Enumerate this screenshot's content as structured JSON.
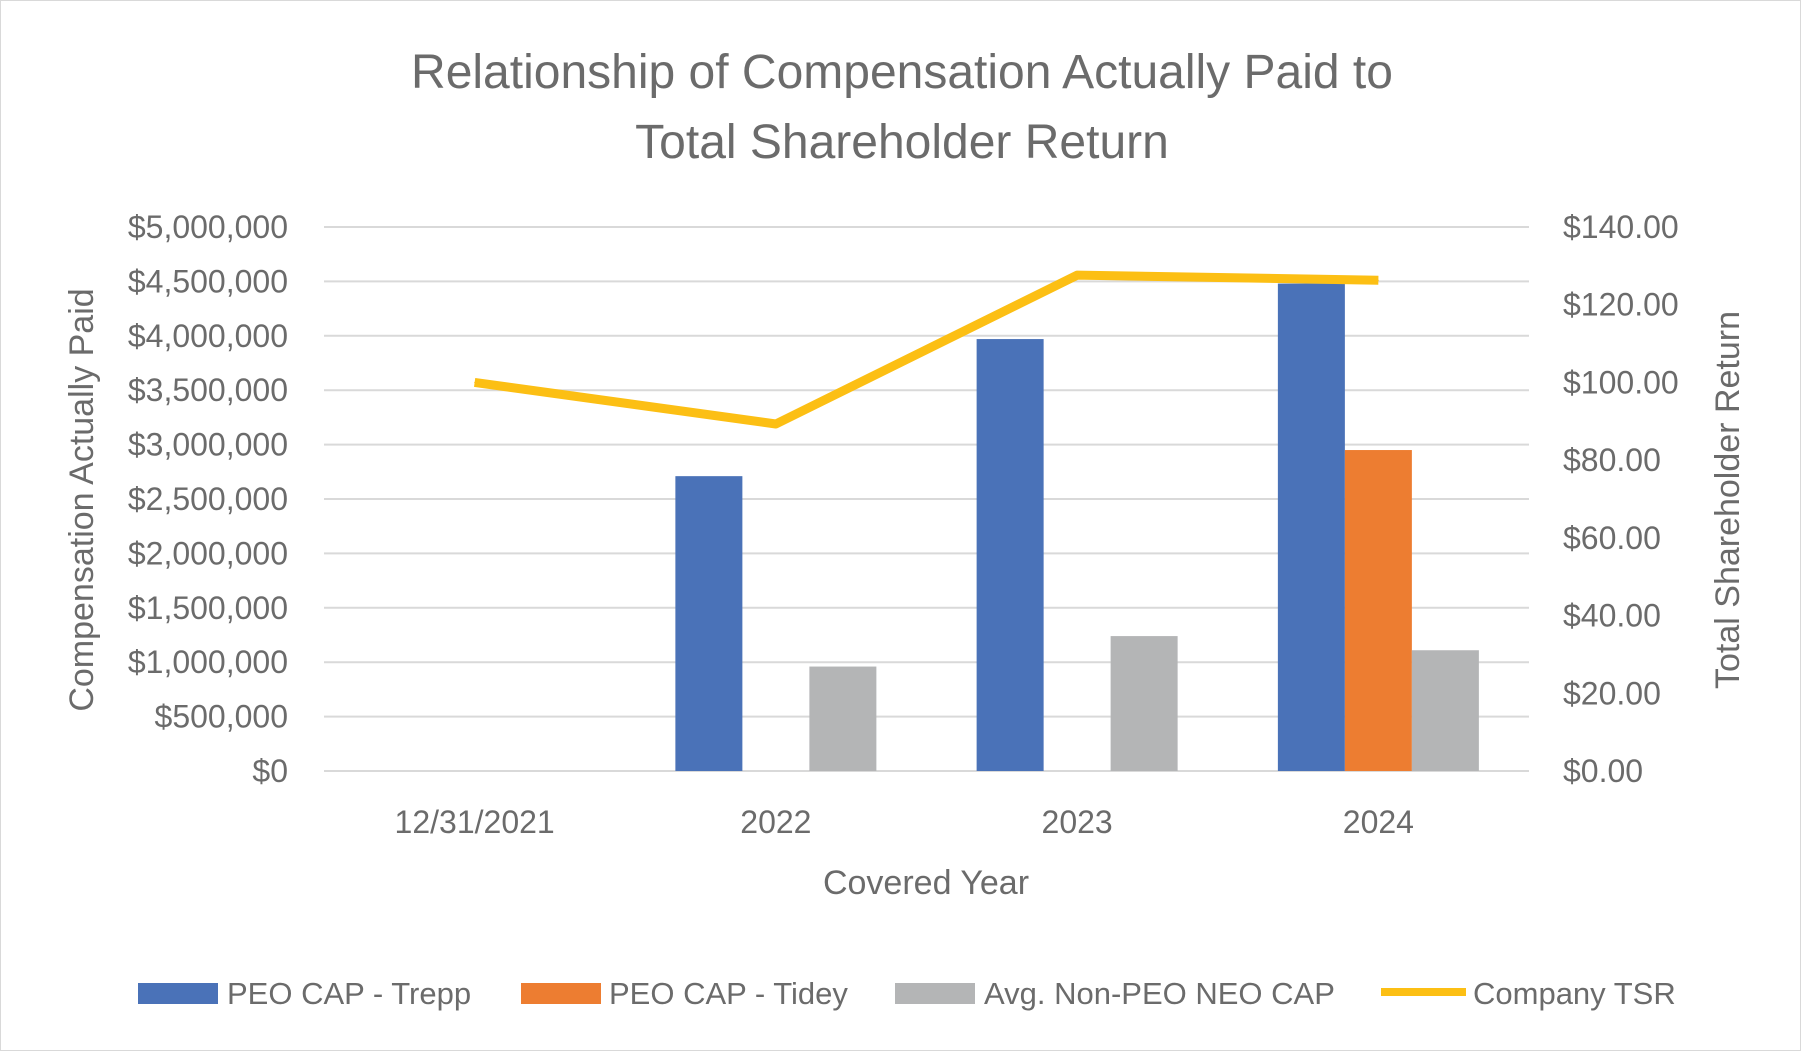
{
  "chart_data": {
    "type": "bar",
    "title_lines": [
      "Relationship of Compensation Actually Paid to",
      "Total Shareholder Return"
    ],
    "categories": [
      "12/31/2021",
      "2022",
      "2023",
      "2024"
    ],
    "xlabel": "Covered Year",
    "ylabel": "Compensation Actually Paid",
    "y2label": "Total Shareholder Return",
    "ylim": [
      0,
      5000000
    ],
    "y2lim": [
      0,
      140
    ],
    "yticks": [
      "$5,000,000",
      "$4,500,000",
      "$4,000,000",
      "$3,500,000",
      "$3,000,000",
      "$2,500,000",
      "$2,000,000",
      "$1,500,000",
      "$1,000,000",
      "$500,000",
      "$0"
    ],
    "y2ticks": [
      "$140.00",
      "$120.00",
      "$100.00",
      "$80.00",
      "$60.00",
      "$40.00",
      "$20.00",
      "$0.00"
    ],
    "grid": true,
    "legend_position": "bottom",
    "series": [
      {
        "name": "PEO CAP - Trepp",
        "kind": "bar",
        "color": "#4a72b8",
        "values": [
          null,
          2710000,
          3970000,
          4480000
        ]
      },
      {
        "name": "PEO CAP - Tidey",
        "kind": "bar",
        "color": "#ed7d31",
        "values": [
          null,
          null,
          null,
          2950000
        ]
      },
      {
        "name": "Avg. Non-PEO NEO CAP",
        "kind": "bar",
        "color": "#b4b5b6",
        "values": [
          null,
          960000,
          1240000,
          1110000
        ]
      },
      {
        "name": "Company TSR",
        "kind": "line",
        "axis": "right",
        "color": "#fcbf14",
        "values": [
          100.0,
          89.3,
          127.6,
          126.3
        ]
      }
    ]
  }
}
